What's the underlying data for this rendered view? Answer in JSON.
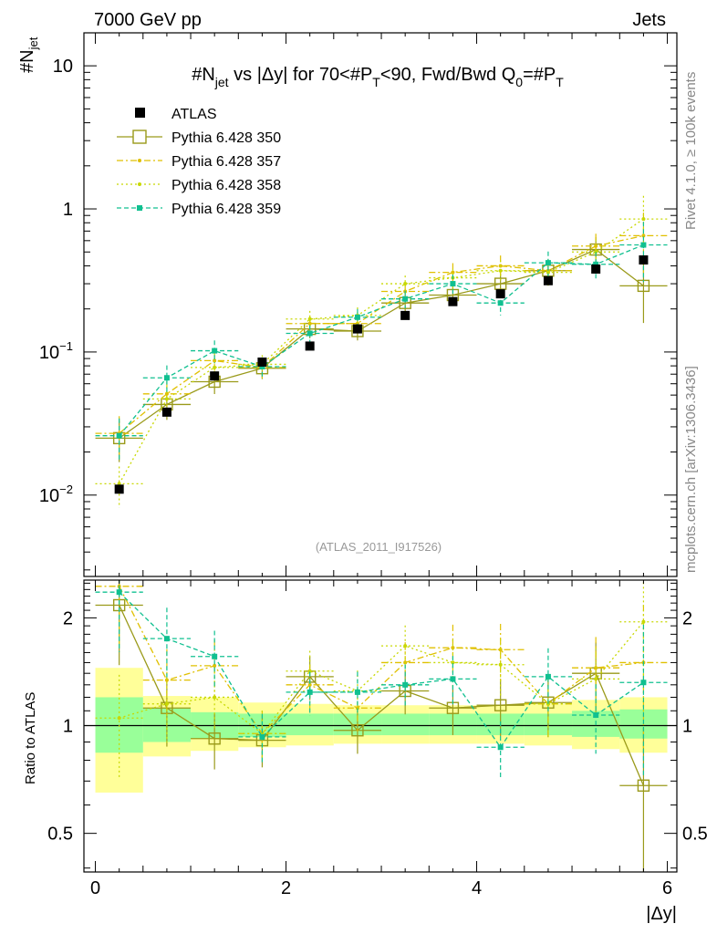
{
  "header": {
    "left": "7000 GeV pp",
    "right": "Jets",
    "plot_title": "#N_jet vs |Δy| for 70<#P_T<90, Fwd/Bwd Q_0=#P_T",
    "title_parts": {
      "p1": "#N",
      "p1sub": "jet",
      "p2": " vs |Δy| for 70<#P",
      "p2sub": "T",
      "p3": "<90, Fwd/Bwd Q",
      "p3sub": "0",
      "p4": "=#P",
      "p4sub": "T"
    }
  },
  "side": {
    "rivet": "Rivet 4.1.0, ≥ 100k events",
    "mcplots": "mcplots.cern.ch [arXiv:1306.3436]"
  },
  "watermark": "(ATLAS_2011_I917526)",
  "ratio_ylabel": "Ratio to ATLAS",
  "chart_data": [
    {
      "type": "scatter",
      "scale": "log",
      "ylabel": "#N_jet",
      "ylabel_parts": {
        "main": "#N",
        "sub": "jet"
      },
      "xlim": [
        -0.12,
        6.1
      ],
      "ylim": [
        0.0027,
        17
      ],
      "yticks": [
        {
          "value": 10,
          "base": "10",
          "exp": ""
        },
        {
          "value": 1,
          "base": "1",
          "exp": ""
        },
        {
          "value": 0.1,
          "base": "10",
          "exp": "−1"
        },
        {
          "value": 0.01,
          "base": "10",
          "exp": "−2"
        }
      ],
      "x": [
        0.25,
        0.75,
        1.25,
        1.75,
        2.25,
        2.75,
        3.25,
        3.75,
        4.25,
        4.75,
        5.25,
        5.75
      ],
      "series": [
        {
          "name": "ATLAS",
          "color": "#000000",
          "style": "data",
          "values": [
            0.011,
            0.038,
            0.068,
            0.085,
            0.11,
            0.145,
            0.18,
            0.225,
            0.255,
            0.315,
            0.38,
            0.44
          ]
        },
        {
          "name": "Pythia 6.428 350",
          "color": "#9a9a1a",
          "style": "solid",
          "values": [
            0.025,
            0.043,
            0.062,
            0.077,
            0.145,
            0.14,
            0.22,
            0.25,
            0.3,
            0.37,
            0.52,
            0.29
          ]
        },
        {
          "name": "Pythia 6.428 357",
          "color": "#e0c000",
          "style": "dashdot",
          "values": [
            0.027,
            0.051,
            0.087,
            0.078,
            0.158,
            0.158,
            0.265,
            0.36,
            0.4,
            0.37,
            0.55,
            0.65
          ]
        },
        {
          "name": "Pythia 6.428 358",
          "color": "#c8d800",
          "style": "dotted",
          "values": [
            0.012,
            0.047,
            0.078,
            0.082,
            0.17,
            0.18,
            0.3,
            0.33,
            0.37,
            0.36,
            0.5,
            0.85
          ]
        },
        {
          "name": "Pythia 6.428 359",
          "color": "#10c090",
          "style": "dashed",
          "values": [
            0.026,
            0.066,
            0.102,
            0.079,
            0.135,
            0.175,
            0.235,
            0.3,
            0.22,
            0.42,
            0.41,
            0.56
          ]
        }
      ]
    },
    {
      "type": "scatter",
      "scale": "log",
      "ylabel": "Ratio to ATLAS",
      "xlabel": "|Δy|",
      "xlim": [
        -0.12,
        6.1
      ],
      "ylim": [
        0.39,
        2.55
      ],
      "xticks": [
        0,
        2,
        4,
        6
      ],
      "yticks": [
        0.5,
        1,
        2
      ],
      "x": [
        0.25,
        0.75,
        1.25,
        1.75,
        2.25,
        2.75,
        3.25,
        3.75,
        4.25,
        4.75,
        5.25,
        5.75
      ],
      "bins": [
        0,
        0.5,
        1,
        1.5,
        2,
        2.5,
        3,
        3.5,
        4,
        4.5,
        5,
        5.5,
        6
      ],
      "band_green": [
        [
          0.84,
          1.2
        ],
        [
          0.9,
          1.12
        ],
        [
          0.92,
          1.09
        ],
        [
          0.93,
          1.08
        ],
        [
          0.94,
          1.08
        ],
        [
          0.94,
          1.08
        ],
        [
          0.94,
          1.08
        ],
        [
          0.94,
          1.08
        ],
        [
          0.94,
          1.08
        ],
        [
          0.94,
          1.08
        ],
        [
          0.93,
          1.1
        ],
        [
          0.92,
          1.11
        ]
      ],
      "band_yellow": [
        [
          0.65,
          1.45
        ],
        [
          0.82,
          1.21
        ],
        [
          0.85,
          1.2
        ],
        [
          0.87,
          1.16
        ],
        [
          0.88,
          1.15
        ],
        [
          0.89,
          1.14
        ],
        [
          0.89,
          1.14
        ],
        [
          0.89,
          1.14
        ],
        [
          0.89,
          1.14
        ],
        [
          0.88,
          1.15
        ],
        [
          0.86,
          1.18
        ],
        [
          0.84,
          1.2
        ]
      ],
      "series": [
        {
          "name": "Pythia 6.428 350",
          "color": "#9a9a1a",
          "style": "solid",
          "values": [
            2.17,
            1.12,
            0.92,
            0.91,
            1.37,
            0.97,
            1.25,
            1.12,
            1.14,
            1.16,
            1.4,
            0.68
          ]
        },
        {
          "name": "Pythia 6.428 357",
          "color": "#e0c000",
          "style": "dashdot",
          "values": [
            2.45,
            1.34,
            1.47,
            0.95,
            1.3,
            1.12,
            1.5,
            1.65,
            1.63,
            1.15,
            1.45,
            1.5
          ]
        },
        {
          "name": "Pythia 6.428 358",
          "color": "#c8d800",
          "style": "dotted",
          "values": [
            1.05,
            1.15,
            1.2,
            0.95,
            1.42,
            1.25,
            1.67,
            1.5,
            1.48,
            1.15,
            1.35,
            1.95
          ]
        },
        {
          "name": "Pythia 6.428 359",
          "color": "#10c090",
          "style": "dashed",
          "values": [
            2.36,
            1.75,
            1.56,
            0.93,
            1.24,
            1.24,
            1.3,
            1.35,
            0.87,
            1.37,
            1.07,
            1.32
          ]
        }
      ]
    }
  ]
}
